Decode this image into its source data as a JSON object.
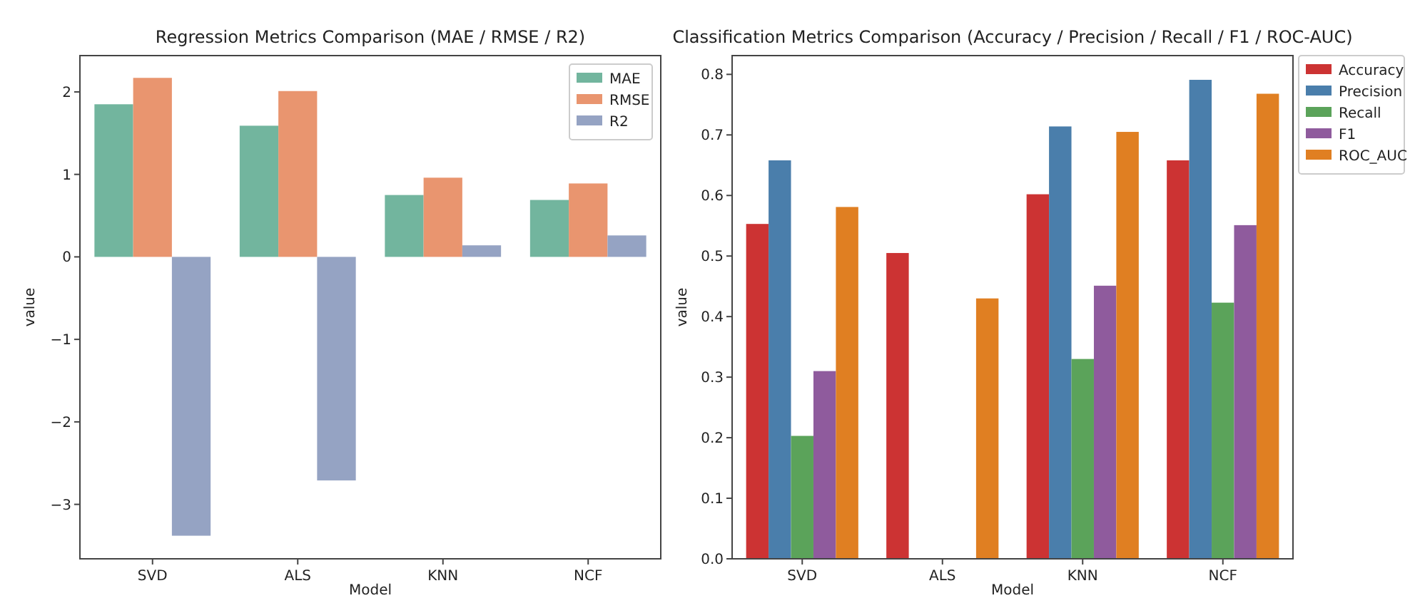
{
  "chart_data": [
    {
      "type": "bar",
      "title": "Regression Metrics Comparison (MAE / RMSE / R2)",
      "xlabel": "Model",
      "ylabel": "value",
      "categories": [
        "SVD",
        "ALS",
        "KNN",
        "NCF"
      ],
      "series": [
        {
          "name": "MAE",
          "color": "#72b59e",
          "values": [
            1.85,
            1.59,
            0.75,
            0.69
          ]
        },
        {
          "name": "RMSE",
          "color": "#e9956f",
          "values": [
            2.17,
            2.01,
            0.96,
            0.89
          ]
        },
        {
          "name": "R2",
          "color": "#95a3c3",
          "values": [
            -3.38,
            -2.71,
            0.14,
            0.26
          ]
        }
      ],
      "ylim": [
        -3.66,
        2.44
      ],
      "yticks": [
        {
          "value": -3,
          "label": "−3"
        },
        {
          "value": -2,
          "label": "−2"
        },
        {
          "value": -1,
          "label": "−1"
        },
        0,
        1,
        2
      ],
      "legend": "top right",
      "grid": false
    },
    {
      "type": "bar",
      "title": "Classification Metrics Comparison (Accuracy / Precision / Recall / F1 / ROC-AUC)",
      "xlabel": "Model",
      "ylabel": "value",
      "categories": [
        "SVD",
        "ALS",
        "KNN",
        "NCF"
      ],
      "series": [
        {
          "name": "Accuracy",
          "color": "#cc3333",
          "values": [
            0.553,
            0.505,
            0.602,
            0.658
          ]
        },
        {
          "name": "Precision",
          "color": "#4a7eab",
          "values": [
            0.658,
            0,
            0.714,
            0.791
          ]
        },
        {
          "name": "Recall",
          "color": "#5ba35a",
          "values": [
            0.203,
            0,
            0.33,
            0.423
          ]
        },
        {
          "name": "F1",
          "color": "#8f5b9d",
          "values": [
            0.31,
            0,
            0.451,
            0.551
          ]
        },
        {
          "name": "ROC_AUC",
          "color": "#e07f22",
          "values": [
            0.581,
            0.43,
            0.705,
            0.768
          ]
        }
      ],
      "ylim": [
        0,
        0.831
      ],
      "yticks": [
        {
          "value": 0,
          "label": "0.0"
        },
        0.1,
        0.2,
        0.3,
        0.4,
        0.5,
        0.6,
        0.7,
        0.8
      ],
      "legend": "right",
      "grid": false
    }
  ]
}
